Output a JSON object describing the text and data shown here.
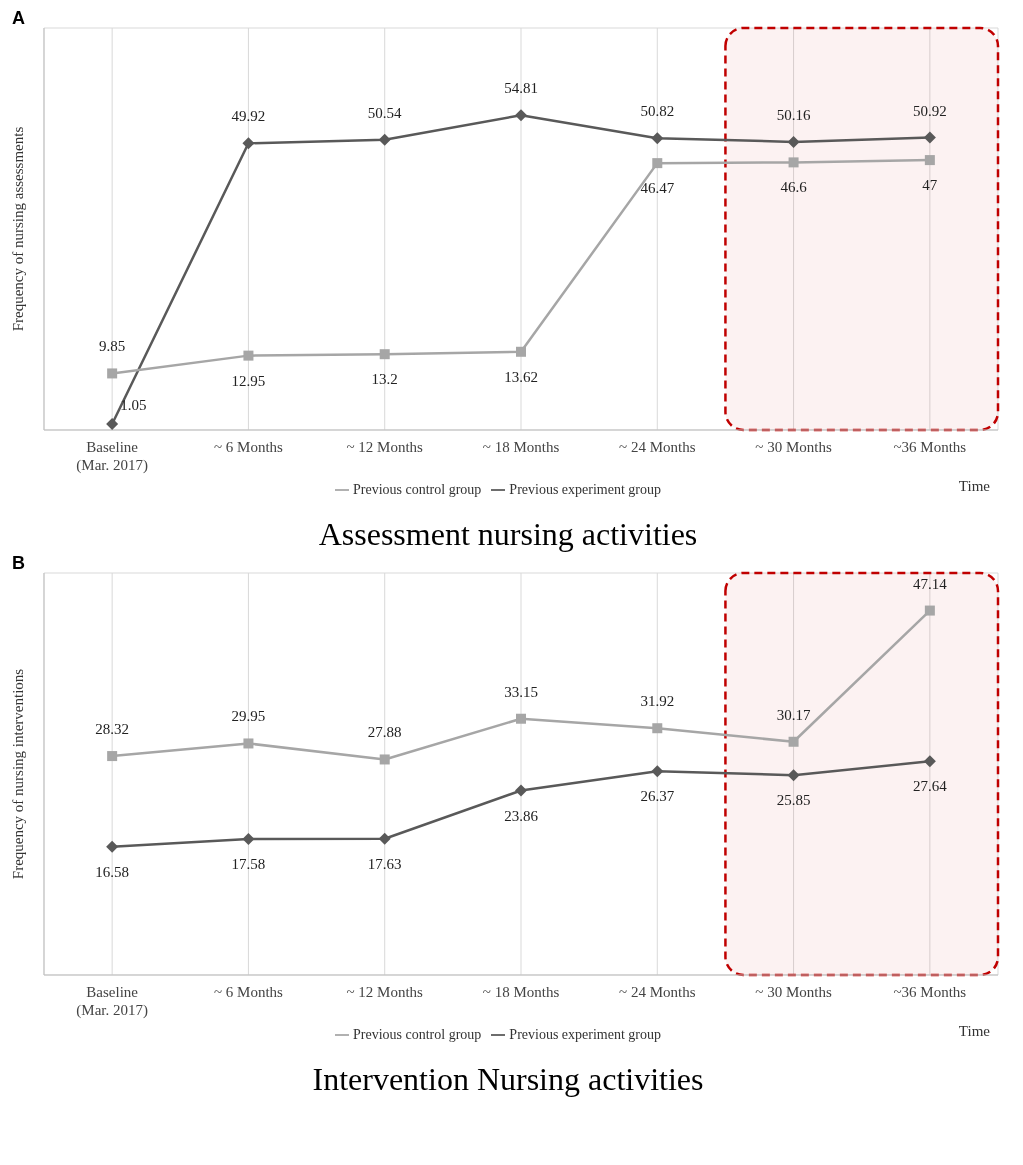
{
  "chart_data": [
    {
      "type": "line",
      "title": "Assessment nursing activities",
      "ylabel": "Frequency of nursing assessments",
      "annotations": [
        "A",
        "Time"
      ],
      "categories": [
        "Baseline\n(Mar. 2017)",
        "~ 6 Months",
        "~ 12 Months",
        "~ 18 Months",
        "~ 24 Months",
        "~ 30 Months",
        "~36 Months"
      ],
      "series": [
        {
          "name": "Previous experiment group",
          "color": "#595959",
          "marker": "diamond",
          "values": [
            1.05,
            49.92,
            50.54,
            54.81,
            50.82,
            50.16,
            50.92
          ]
        },
        {
          "name": "Previous control group",
          "color": "#a6a6a6",
          "marker": "square",
          "values": [
            9.85,
            12.95,
            13.2,
            13.62,
            46.47,
            46.6,
            47
          ]
        }
      ],
      "ylim": [
        0,
        70
      ],
      "tick_labels": "x",
      "grid": true,
      "legend": "bottom",
      "data_labels": true,
      "bands": [
        {
          "axis": "x",
          "from": "~ 30 Months",
          "to": "~36 Months",
          "color": "#c00000"
        }
      ]
    },
    {
      "type": "line",
      "title": "Intervention Nursing activities",
      "ylabel": "Frequency of nursing interventions",
      "annotations": [
        "B",
        "Time"
      ],
      "categories": [
        "Baseline\n(Mar. 2017)",
        "~ 6 Months",
        "~ 12 Months",
        "~ 18 Months",
        "~ 24 Months",
        "~ 30 Months",
        "~36 Months"
      ],
      "series": [
        {
          "name": "Previous experiment group",
          "color": "#595959",
          "marker": "diamond",
          "values": [
            16.58,
            17.58,
            17.63,
            23.86,
            26.37,
            25.85,
            27.64
          ]
        },
        {
          "name": "Previous control group",
          "color": "#a6a6a6",
          "marker": "square",
          "values": [
            28.32,
            29.95,
            27.88,
            33.15,
            31.92,
            30.17,
            47.14
          ]
        }
      ],
      "ylim": [
        0,
        52
      ],
      "tick_labels": "x",
      "grid": true,
      "legend": "bottom",
      "data_labels": true,
      "bands": [
        {
          "axis": "x",
          "from": "~ 30 Months",
          "to": "~36 Months",
          "color": "#c00000"
        }
      ]
    }
  ]
}
